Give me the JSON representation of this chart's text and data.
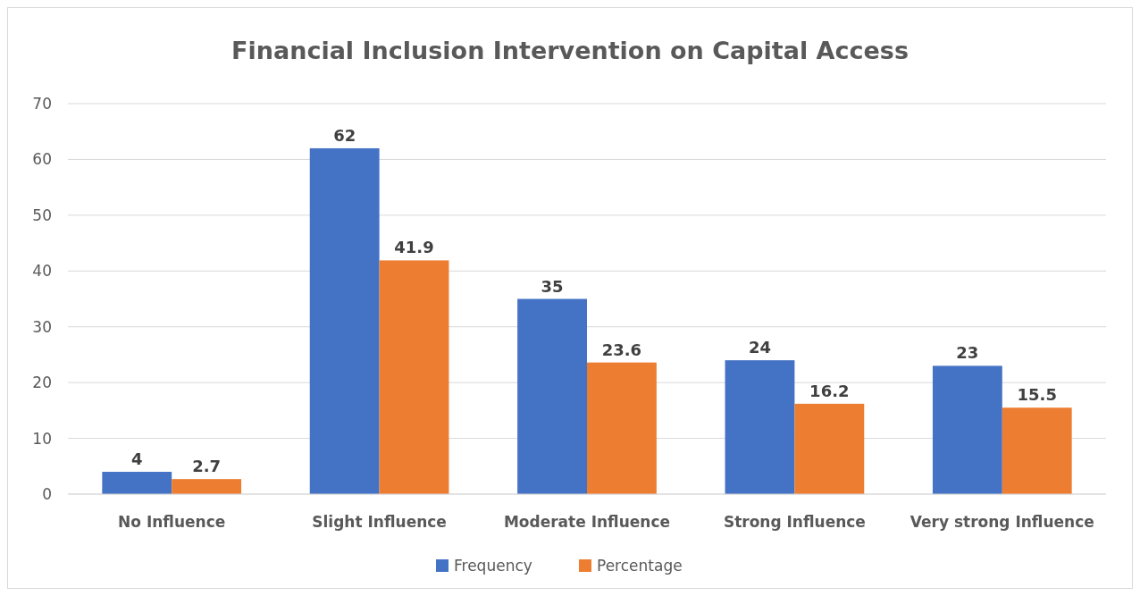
{
  "chart_data": {
    "type": "bar",
    "title": "Financial Inclusion Intervention on Capital Access",
    "categories": [
      "No Influence",
      "Slight Influence",
      "Moderate Influence",
      "Strong Influence",
      "Very strong Influence"
    ],
    "series": [
      {
        "name": "Frequency",
        "color": "#4472c4",
        "values": [
          4,
          62,
          35,
          24,
          23
        ]
      },
      {
        "name": "Percentage",
        "color": "#ed7d31",
        "values": [
          2.7,
          41.9,
          23.6,
          16.2,
          15.5
        ]
      }
    ],
    "ylim": [
      0,
      70
    ],
    "yticks": [
      0,
      10,
      20,
      30,
      40,
      50,
      60,
      70
    ],
    "grid": "y",
    "legend": "bottom",
    "data_labels": true
  }
}
